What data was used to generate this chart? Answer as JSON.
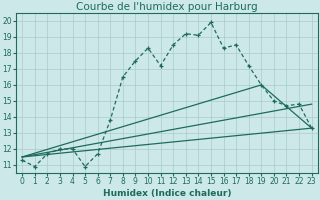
{
  "title": "Courbe de l'humidex pour Harburg",
  "xlabel": "Humidex (Indice chaleur)",
  "xlim": [
    -0.5,
    23.5
  ],
  "ylim": [
    10.5,
    20.5
  ],
  "xticks": [
    0,
    1,
    2,
    3,
    4,
    5,
    6,
    7,
    8,
    9,
    10,
    11,
    12,
    13,
    14,
    15,
    16,
    17,
    18,
    19,
    20,
    21,
    22,
    23
  ],
  "yticks": [
    11,
    12,
    13,
    14,
    15,
    16,
    17,
    18,
    19,
    20
  ],
  "bg_color": "#cce8e8",
  "grid_color": "#aacccc",
  "line_color": "#1e6b5e",
  "line1_x": [
    0,
    1,
    2,
    3,
    4,
    5,
    6,
    7,
    8,
    9,
    10,
    11,
    12,
    13,
    14,
    15,
    16,
    17,
    18,
    19,
    20,
    21,
    22,
    23
  ],
  "line1_y": [
    11.3,
    10.9,
    11.7,
    12.0,
    12.0,
    10.9,
    11.7,
    13.8,
    16.5,
    17.5,
    18.3,
    17.2,
    18.5,
    19.2,
    19.1,
    19.9,
    18.3,
    18.5,
    17.2,
    16.0,
    15.0,
    14.7,
    14.8,
    13.3
  ],
  "line2_x": [
    0,
    23
  ],
  "line2_y": [
    11.5,
    13.3
  ],
  "line3_x": [
    0,
    23
  ],
  "line3_y": [
    11.5,
    14.8
  ],
  "line4_x": [
    0,
    19,
    23
  ],
  "line4_y": [
    11.5,
    16.0,
    13.3
  ],
  "title_fontsize": 7.5,
  "axis_fontsize": 6.5,
  "tick_fontsize": 5.5
}
